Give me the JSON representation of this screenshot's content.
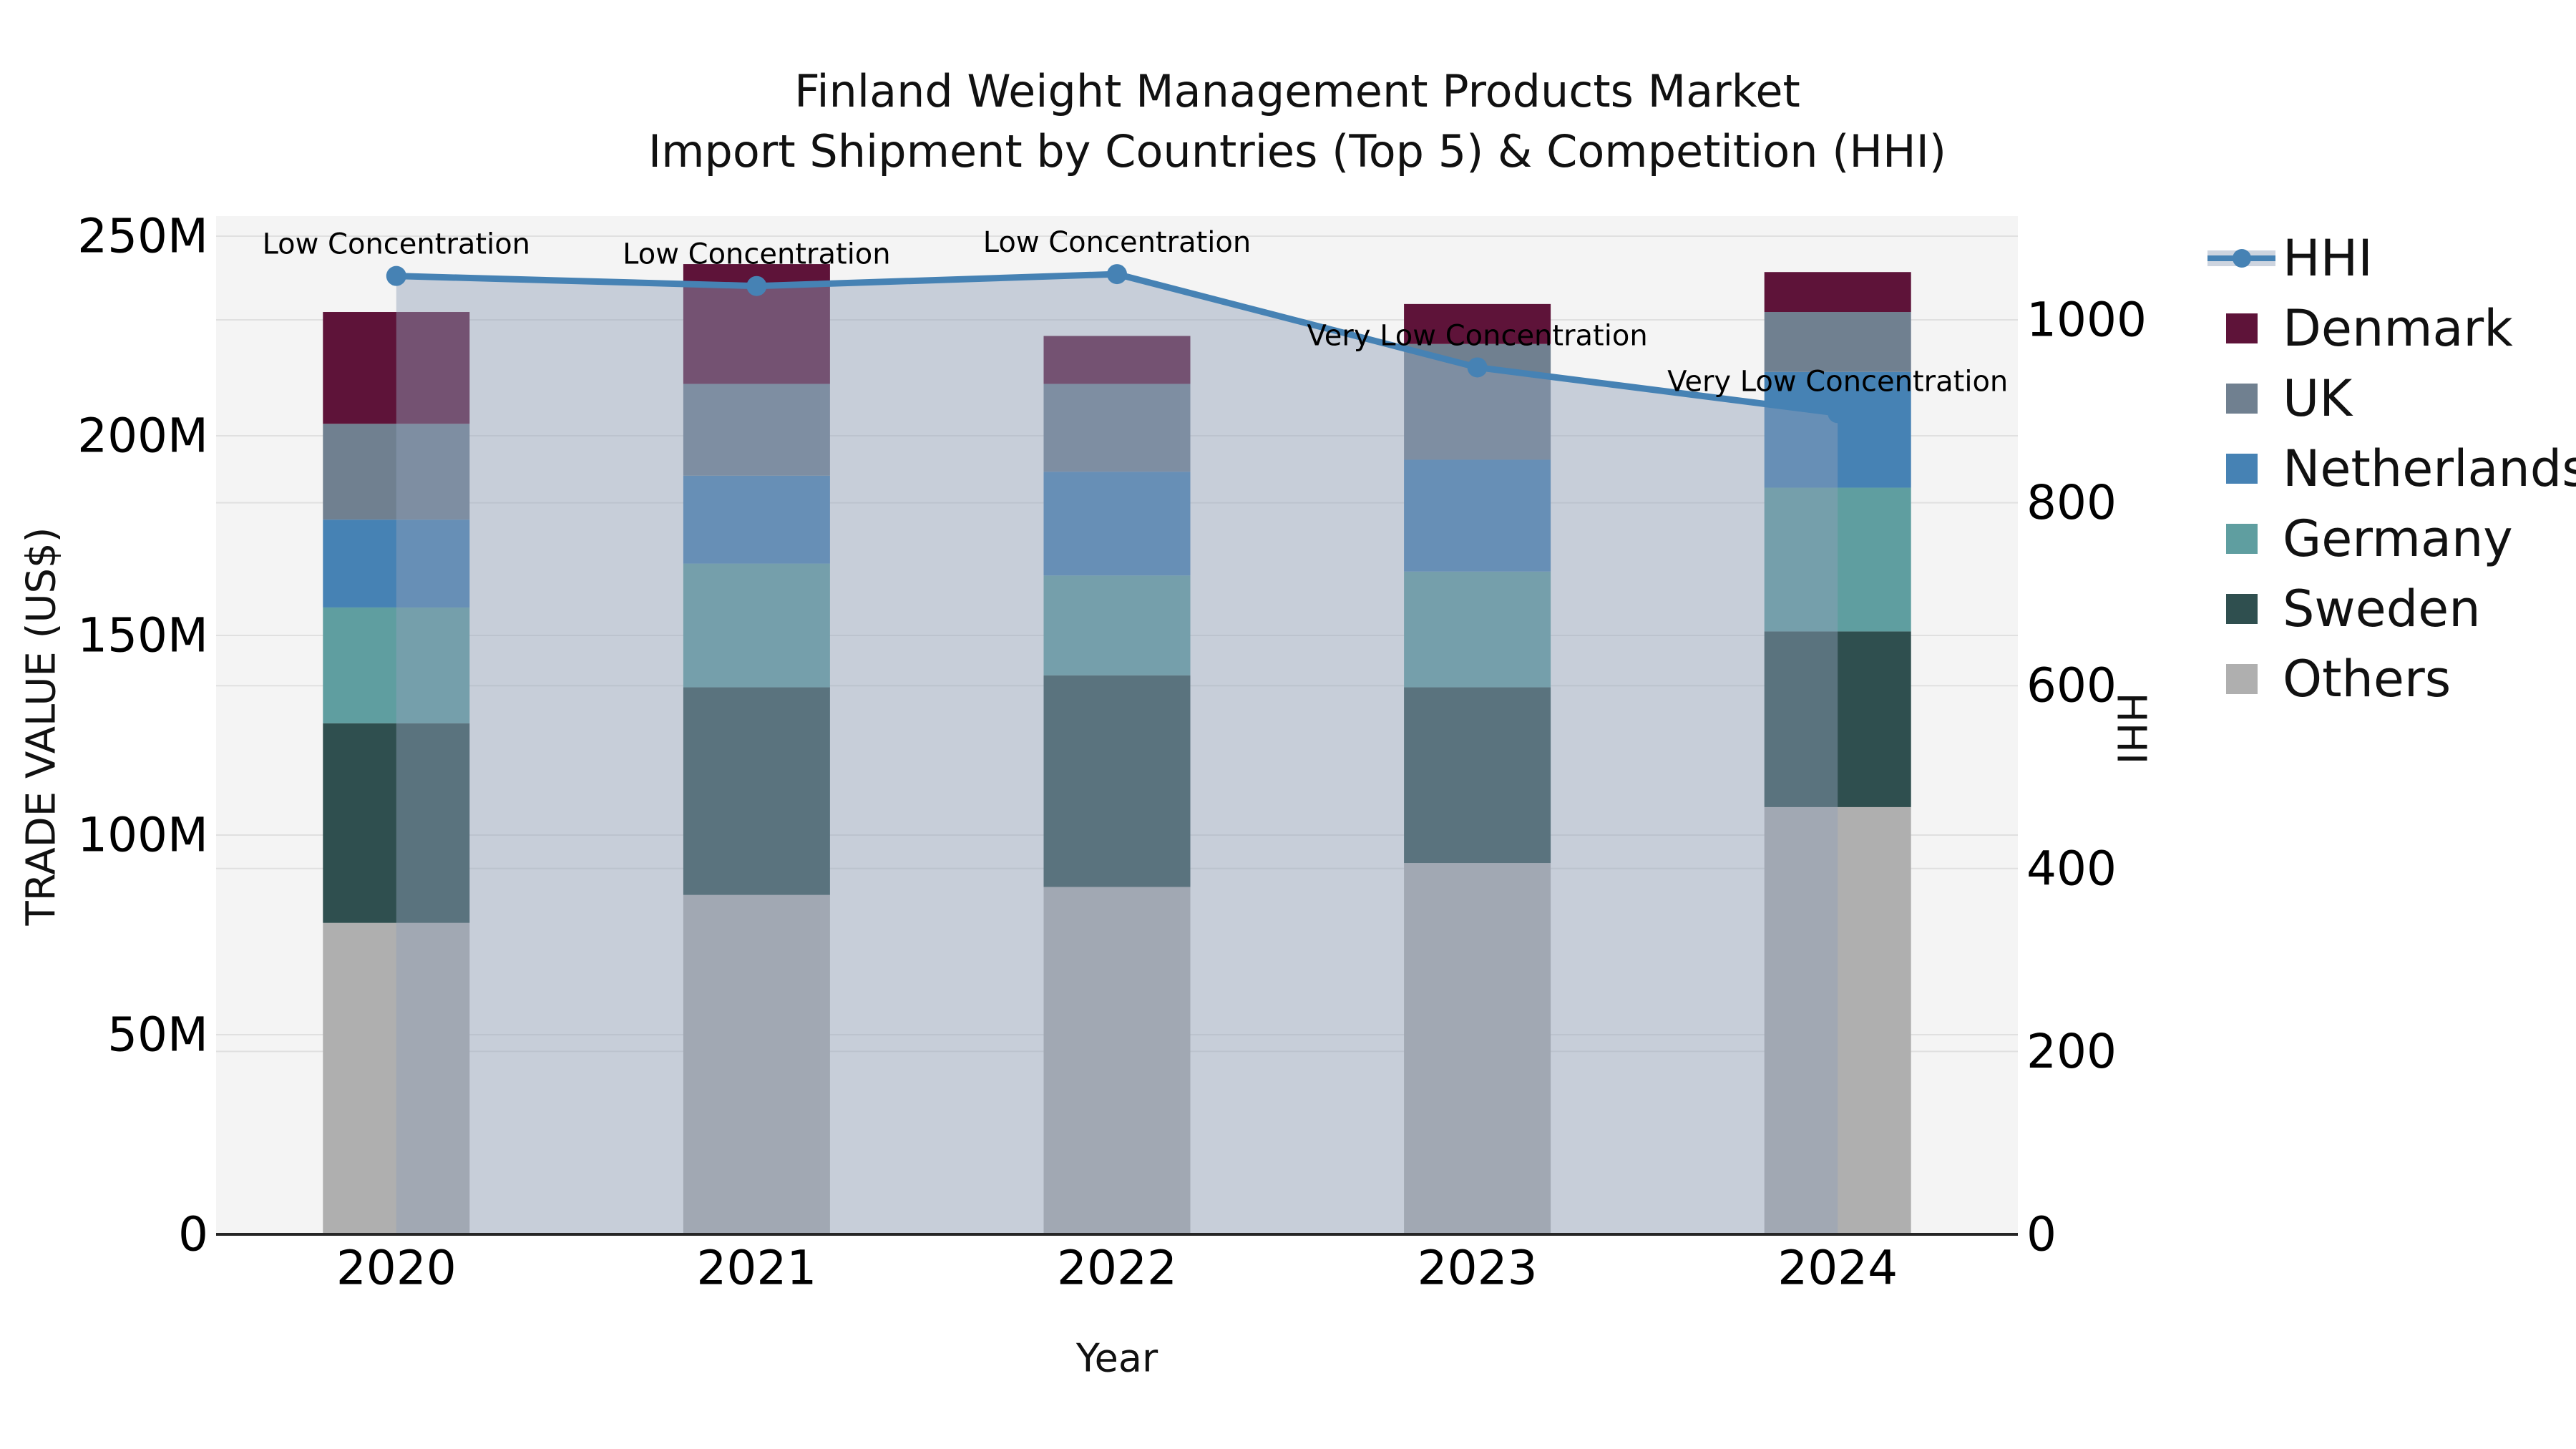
{
  "title": {
    "line1": "Finland Weight Management Products Market",
    "line2": "Import Shipment by Countries (Top 5) & Competition (HHI)"
  },
  "axes": {
    "y_left": {
      "label": "TRADE VALUE (US$)",
      "tick_labels": [
        "0",
        "50M",
        "100M",
        "150M",
        "200M",
        "250M"
      ],
      "tick_values": [
        0,
        50,
        100,
        150,
        200,
        250
      ],
      "range_millions": [
        0,
        255
      ]
    },
    "y_right": {
      "label": "HHI",
      "tick_labels": [
        "0",
        "200",
        "400",
        "600",
        "800",
        "1000"
      ],
      "tick_values": [
        0,
        200,
        400,
        600,
        800,
        1000
      ],
      "range": [
        0,
        1113
      ]
    },
    "x": {
      "label": "Year",
      "tick_labels": [
        "2020",
        "2021",
        "2022",
        "2023",
        "2024"
      ]
    }
  },
  "legend": {
    "items": [
      "HHI",
      "Denmark",
      "UK",
      "Netherlands",
      "Germany",
      "Sweden",
      "Others"
    ]
  },
  "chart_data": {
    "type": "bar",
    "subtype": "stacked-bars-with-hhi-line-and-area",
    "title": "Finland Weight Management Products Market — Import Shipment by Countries (Top 5) & Competition (HHI)",
    "xlabel": "Year",
    "ylabel_left": "TRADE VALUE (US$)",
    "ylabel_right": "HHI",
    "unit": "million US$",
    "categories": [
      "2020",
      "2021",
      "2022",
      "2023",
      "2024"
    ],
    "stack_note": "series listed top-to-bottom of stack; drawn bottom-to-top in reverse order",
    "series": [
      {
        "name": "Denmark",
        "color": "#5e1339",
        "values": [
          28,
          30,
          12,
          10,
          10
        ]
      },
      {
        "name": "UK",
        "color": "#708090",
        "values": [
          24,
          23,
          22,
          29,
          15
        ]
      },
      {
        "name": "Netherlands",
        "color": "#4682b4",
        "values": [
          22,
          22,
          26,
          28,
          29
        ]
      },
      {
        "name": "Germany",
        "color": "#5f9ea0",
        "values": [
          29,
          31,
          25,
          29,
          36
        ]
      },
      {
        "name": "Sweden",
        "color": "#2f4f4f",
        "values": [
          50,
          52,
          53,
          44,
          44
        ]
      },
      {
        "name": "Others",
        "color": "#afafaf",
        "values": [
          78,
          85,
          87,
          93,
          107
        ]
      }
    ],
    "totals_millions": [
      231,
      243,
      225,
      233,
      241
    ],
    "hhi_line": {
      "name": "HHI",
      "color": "#4682b4",
      "area_fill": "rgba(145,160,185,0.45)",
      "values": [
        1048,
        1037,
        1050,
        948,
        898
      ]
    },
    "annotations": [
      {
        "category": "2020",
        "text": "Low Concentration"
      },
      {
        "category": "2021",
        "text": "Low Concentration"
      },
      {
        "category": "2022",
        "text": "Low Concentration"
      },
      {
        "category": "2023",
        "text": "Very Low Concentration"
      },
      {
        "category": "2024",
        "text": "Very Low Concentration"
      }
    ],
    "plot_background": "#f4f4f4",
    "gridline_color": "#e0e0e0",
    "axis_line_color": "#262626",
    "legend_position": "right"
  }
}
